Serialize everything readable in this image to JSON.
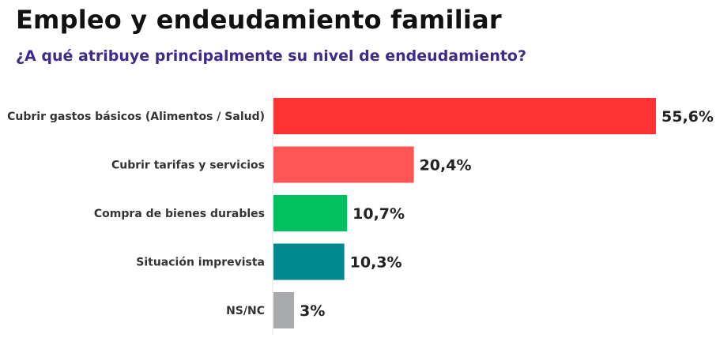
{
  "header": {
    "title": "Empleo y endeudamiento familiar",
    "subtitle": "¿A qué atribuye principalmente su nivel de endeudamiento?"
  },
  "chart_data": {
    "type": "bar",
    "orientation": "horizontal",
    "title": "Empleo y endeudamiento familiar",
    "subtitle": "¿A qué atribuye principalmente su nivel de endeudamiento?",
    "categories": [
      "Cubrir gastos básicos (Alimentos / Salud)",
      "Cubrir tarifas y servicios",
      "Compra de bienes durables",
      "Situación imprevista",
      "NS/NC"
    ],
    "values": [
      55.6,
      20.4,
      10.7,
      10.3,
      3
    ],
    "value_labels": [
      "55,6%",
      "20,4%",
      "10,7%",
      "10,3%",
      "3%"
    ],
    "colors": [
      "#ff3333",
      "#ff5555",
      "#00c060",
      "#008891",
      "#a8aaae"
    ],
    "xlim": [
      0,
      55.6
    ],
    "grid": false,
    "legend": "none"
  }
}
